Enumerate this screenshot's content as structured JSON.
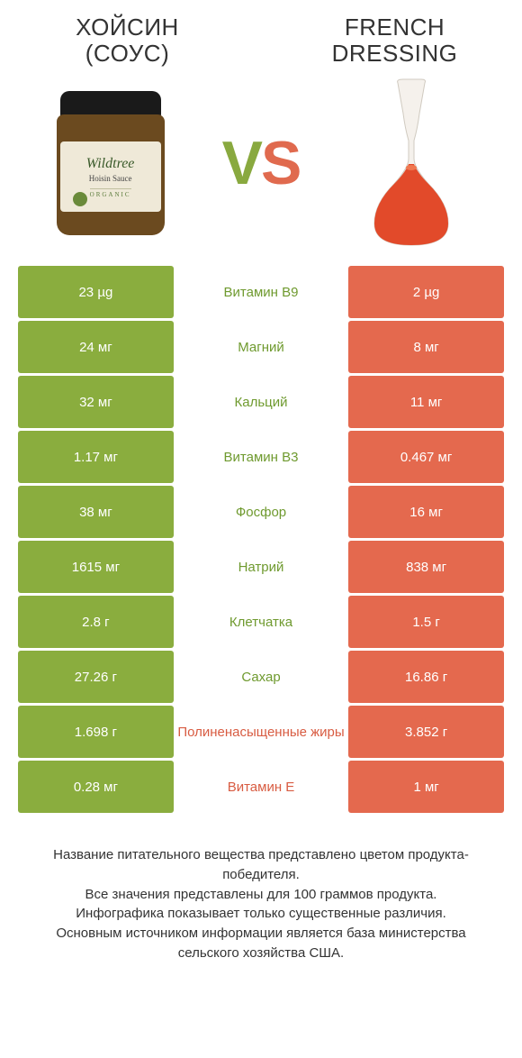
{
  "colors": {
    "green": "#8aad3e",
    "green_text": "#6f9a2f",
    "orange": "#e4694e",
    "orange_text": "#d85c42",
    "background": "#ffffff"
  },
  "fontsize": {
    "title": 26,
    "vs": 68,
    "cell": 15,
    "footer": 15
  },
  "left_product": {
    "title_line1": "ХОЙСИН",
    "title_line2": "(СОУС)",
    "jar_brand": "Wildtree",
    "jar_product": "Hoisin Sauce",
    "jar_organic": "ORGANIC"
  },
  "right_product": {
    "title_line1": "FRENCH",
    "title_line2": "DRESSING"
  },
  "vs_label": {
    "v": "V",
    "s": "S"
  },
  "rows": [
    {
      "left": "23 µg",
      "label": "Витамин B9",
      "right": "2 µg",
      "winner": "left"
    },
    {
      "left": "24 мг",
      "label": "Магний",
      "right": "8 мг",
      "winner": "left"
    },
    {
      "left": "32 мг",
      "label": "Кальций",
      "right": "11 мг",
      "winner": "left"
    },
    {
      "left": "1.17 мг",
      "label": "Витамин B3",
      "right": "0.467 мг",
      "winner": "left"
    },
    {
      "left": "38 мг",
      "label": "Фосфор",
      "right": "16 мг",
      "winner": "left"
    },
    {
      "left": "1615 мг",
      "label": "Натрий",
      "right": "838 мг",
      "winner": "left"
    },
    {
      "left": "2.8 г",
      "label": "Клетчатка",
      "right": "1.5 г",
      "winner": "left"
    },
    {
      "left": "27.26 г",
      "label": "Сахар",
      "right": "16.86 г",
      "winner": "left"
    },
    {
      "left": "1.698 г",
      "label": "Полиненасыщенные жиры",
      "right": "3.852 г",
      "winner": "right"
    },
    {
      "left": "0.28 мг",
      "label": "Витамин E",
      "right": "1 мг",
      "winner": "right"
    }
  ],
  "footer": {
    "line1": "Название питательного вещества представлено цветом продукта-победителя.",
    "line2": "Все значения представлены для 100 граммов продукта.",
    "line3": "Инфографика показывает только существенные различия.",
    "line4": "Основным источником информации является база министерства сельского хозяйства США."
  }
}
